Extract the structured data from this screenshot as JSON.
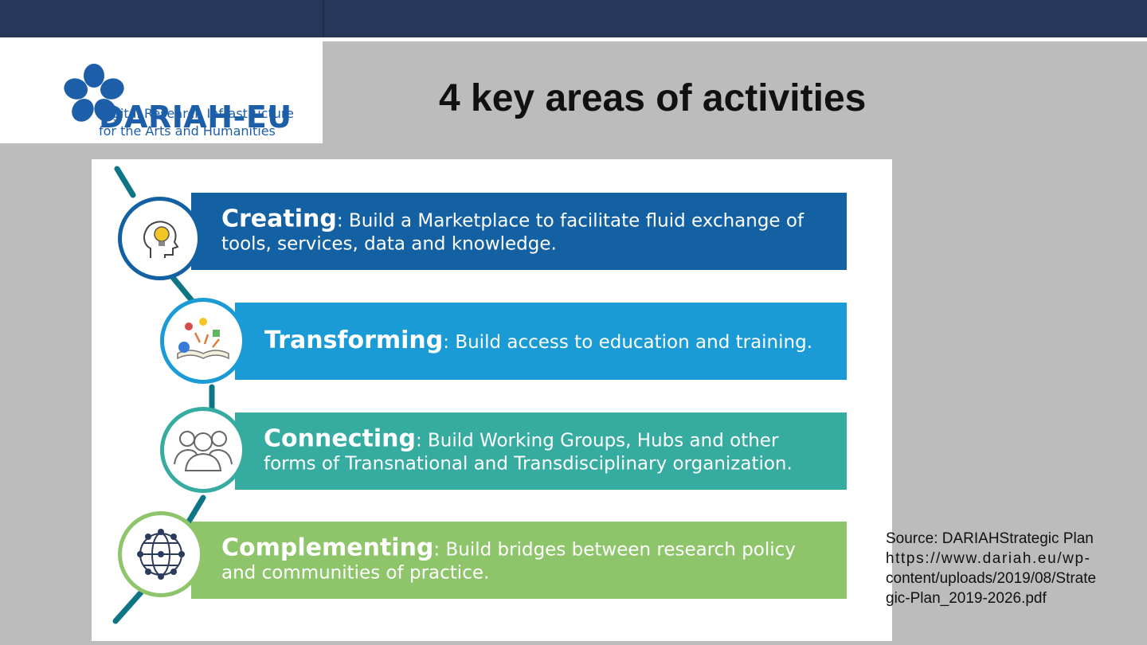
{
  "logo": {
    "name": "DARIAH-EU",
    "subtitle_line1": "Digital Research Infrastructure",
    "subtitle_line2": "for the Arts and Humanities",
    "color": "#1d5ea9"
  },
  "slide": {
    "title": "4 key areas of activities"
  },
  "areas": [
    {
      "heading": "Creating",
      "text": ": Build a Marketplace to facilitate fluid exchange of tools, services, data and knowledge.",
      "color": "#1361a3",
      "icon": "head-lightbulb-icon"
    },
    {
      "heading": "Transforming",
      "text": ": Build access to education and training.",
      "color": "#1b9bd6",
      "icon": "open-book-icon"
    },
    {
      "heading": "Connecting",
      "text": ": Build Working Groups, Hubs and other forms of Transnational and Transdisciplinary organization.",
      "color": "#36aba0",
      "icon": "people-group-icon"
    },
    {
      "heading": "Complementing",
      "text": ": Build bridges between research policy and communities of practice.",
      "color": "#8ec56a",
      "icon": "globe-network-icon"
    }
  ],
  "source": {
    "line1": "Source: DARIAHStrategic Plan",
    "line2": "https://www.dariah.eu/wp-",
    "line3": "content/uploads/2019/08/Strate",
    "line4": "gic-Plan_2019-2026.pdf"
  },
  "colors": {
    "header_bar": "#27375a",
    "background": "#bcbcbc"
  }
}
